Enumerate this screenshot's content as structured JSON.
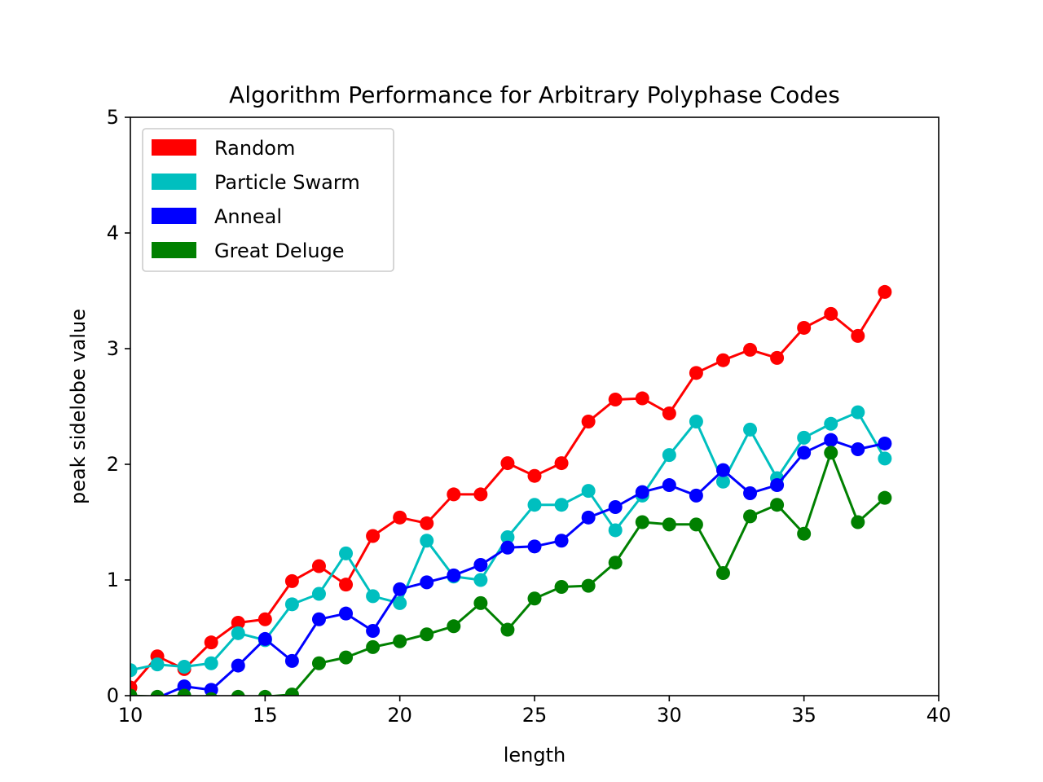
{
  "chart_data": {
    "type": "line",
    "title": "Algorithm Performance for Arbitrary Polyphase Codes",
    "xlabel": "length",
    "ylabel": "peak sidelobe value",
    "xlim": [
      10,
      40
    ],
    "ylim": [
      0,
      5
    ],
    "xticks": [
      10,
      15,
      20,
      25,
      30,
      35,
      40
    ],
    "yticks": [
      0,
      1,
      2,
      3,
      4,
      5
    ],
    "grid": false,
    "legend_position": "top-left",
    "x": [
      10,
      11,
      12,
      13,
      14,
      15,
      16,
      17,
      18,
      19,
      20,
      21,
      22,
      23,
      24,
      25,
      26,
      27,
      28,
      29,
      30,
      31,
      32,
      33,
      34,
      35,
      36,
      37,
      38
    ],
    "series": [
      {
        "name": "Random",
        "color": "#ff0000",
        "values": [
          0.07,
          0.34,
          0.23,
          0.46,
          0.63,
          0.66,
          0.99,
          1.12,
          0.96,
          1.38,
          1.54,
          1.49,
          1.74,
          1.74,
          2.01,
          1.9,
          2.01,
          2.37,
          2.56,
          2.57,
          2.44,
          2.79,
          2.9,
          2.99,
          2.92,
          3.18,
          3.3,
          3.11,
          3.49
        ]
      },
      {
        "name": "Particle Swarm",
        "color": "#00bfbf",
        "values": [
          0.22,
          0.27,
          0.25,
          0.28,
          0.54,
          0.48,
          0.79,
          0.88,
          1.23,
          0.86,
          0.8,
          1.34,
          1.03,
          1.0,
          1.37,
          1.65,
          1.65,
          1.77,
          1.43,
          1.73,
          2.08,
          2.37,
          1.85,
          2.3,
          1.88,
          2.23,
          2.35,
          2.45,
          2.05
        ]
      },
      {
        "name": "Anneal",
        "color": "#0000ff",
        "values": [
          -0.02,
          -0.02,
          0.08,
          0.05,
          0.26,
          0.49,
          0.3,
          0.66,
          0.71,
          0.56,
          0.92,
          0.98,
          1.04,
          1.13,
          1.28,
          1.29,
          1.34,
          1.54,
          1.63,
          1.76,
          1.82,
          1.73,
          1.95,
          1.75,
          1.82,
          2.1,
          2.21,
          2.13,
          2.18
        ]
      },
      {
        "name": "Great Deluge",
        "color": "#008000",
        "values": [
          0.0,
          -0.01,
          0.0,
          -0.03,
          -0.01,
          -0.01,
          0.01,
          0.28,
          0.33,
          0.42,
          0.47,
          0.53,
          0.6,
          0.8,
          0.57,
          0.84,
          0.94,
          0.95,
          1.15,
          1.5,
          1.48,
          1.48,
          1.06,
          1.55,
          1.65,
          1.4,
          2.1,
          1.5,
          1.71
        ]
      }
    ]
  }
}
